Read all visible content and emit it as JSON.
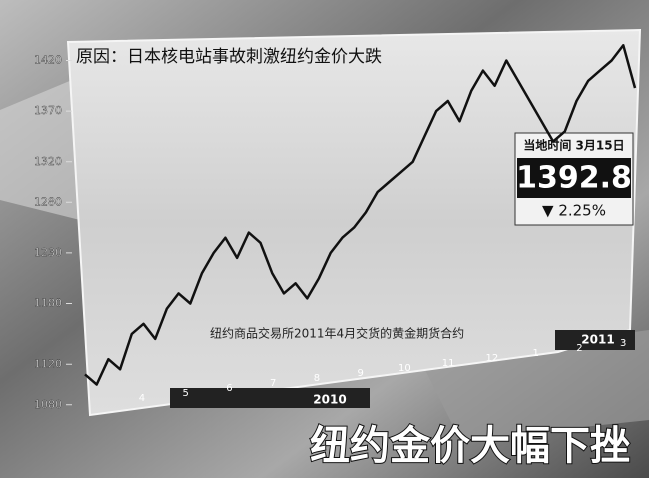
{
  "chart_data": {
    "type": "line",
    "title": "原因：日本核电站事故刺激纽约金价大跌",
    "note": "纽约商品交易所2011年4月交货的黄金期货合约",
    "headline": "纽约金价大幅下挫",
    "price_box": {
      "label": "当地时间 3月15日",
      "price": "1392.8",
      "change": "▼ 2.25%"
    },
    "months": [
      "4",
      "5",
      "6",
      "7",
      "8",
      "9",
      "10",
      "11",
      "12",
      "1",
      "2",
      "3"
    ],
    "years": [
      "2010",
      "2011"
    ],
    "series": [
      {
        "color": "#111111",
        "values": [
          1110,
          1100,
          1125,
          1115,
          1150,
          1160,
          1145,
          1175,
          1190,
          1180,
          1210,
          1230,
          1245,
          1225,
          1250,
          1240,
          1210,
          1190,
          1200,
          1185,
          1205,
          1230,
          1245,
          1255,
          1270,
          1290,
          1300,
          1310,
          1320,
          1345,
          1370,
          1380,
          1360,
          1390,
          1410,
          1395,
          1420,
          1400,
          1380,
          1360,
          1340,
          1350,
          1380,
          1400,
          1410,
          1420,
          1435,
          1392.8
        ]
      }
    ],
    "ylim": [
      1060,
      1460
    ],
    "yticks": [
      1080,
      1120,
      1180,
      1230,
      1280,
      1320,
      1370,
      1420
    ]
  }
}
